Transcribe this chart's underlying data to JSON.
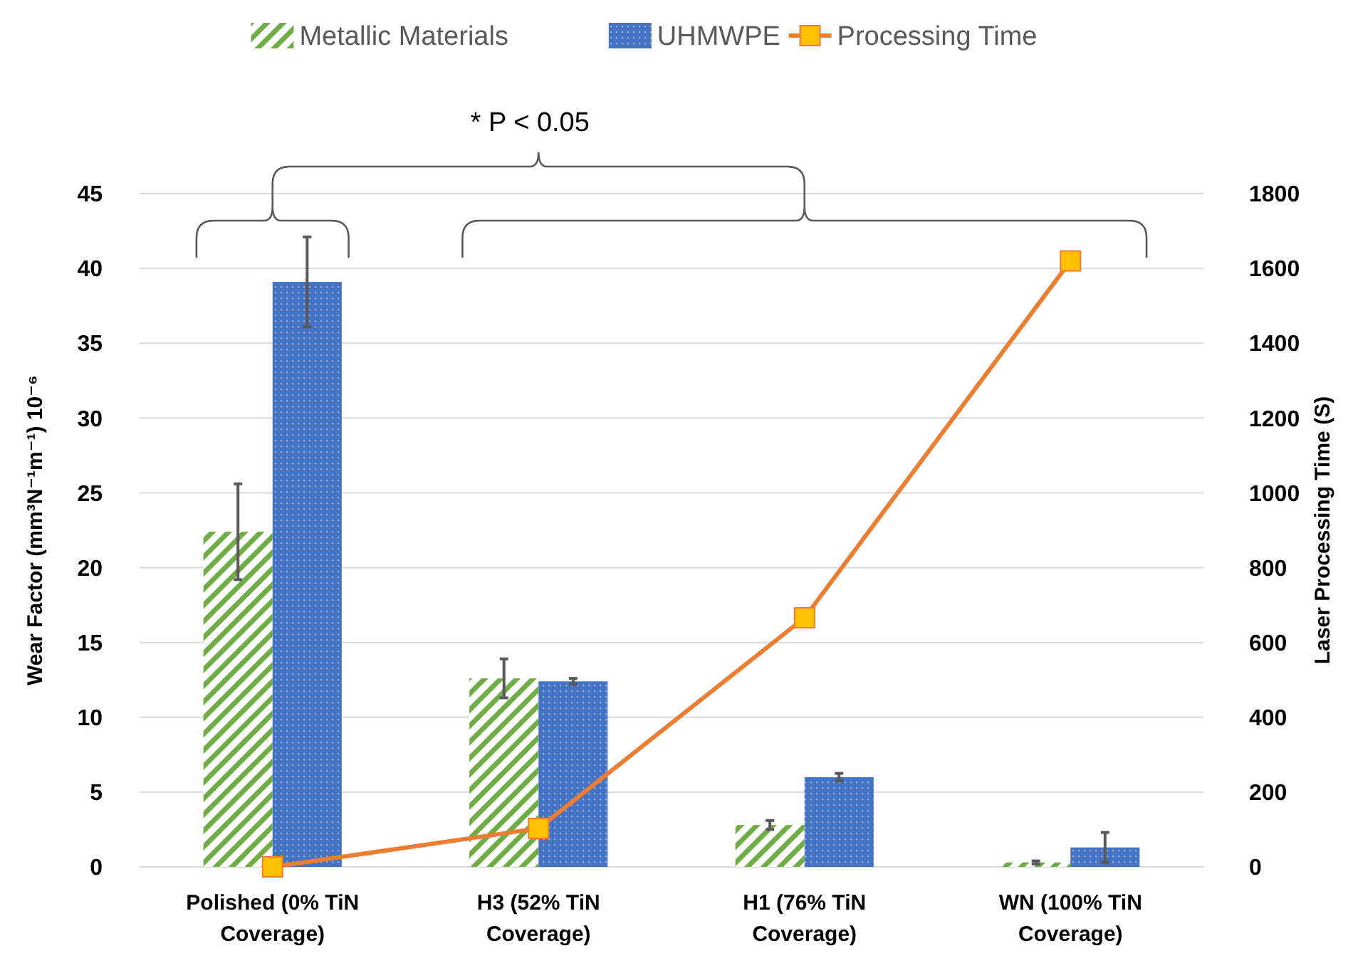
{
  "chart_data": {
    "type": "bar",
    "categories": [
      "Polished (0% TiN Coverage)",
      "H3 (52% TiN Coverage)",
      "H1 (76% TiN Coverage)",
      "WN (100% TiN Coverage)"
    ],
    "series": [
      {
        "name": "Metallic Materials",
        "color": "#70ad47",
        "values": [
          22.4,
          12.6,
          2.8,
          0.3
        ],
        "errors": [
          3.2,
          1.3,
          0.3,
          0.1
        ]
      },
      {
        "name": "UHMWPE",
        "color": "#4472c4",
        "values": [
          39.1,
          12.4,
          6.0,
          1.3
        ],
        "errors": [
          3.0,
          0.2,
          0.25,
          1.0
        ]
      },
      {
        "name": "Processing Time",
        "type": "line",
        "axis": "y2",
        "color": "#ed7d31",
        "values": [
          0,
          103,
          666,
          1620
        ]
      }
    ],
    "ylabel": "Wear Factor (mm³N⁻¹m⁻¹) 10⁻⁶",
    "y2label": "Laser Processing Time (S)",
    "ylim": [
      0,
      45
    ],
    "yticks": [
      0,
      5,
      10,
      15,
      20,
      25,
      30,
      35,
      40,
      45
    ],
    "y2lim": [
      0,
      1800
    ],
    "y2ticks": [
      0,
      200,
      400,
      600,
      800,
      1000,
      1200,
      1400,
      1600,
      1800
    ],
    "annotations": [
      "* P < 0.05"
    ],
    "grid": "y",
    "legend": "top",
    "marker": "square"
  }
}
